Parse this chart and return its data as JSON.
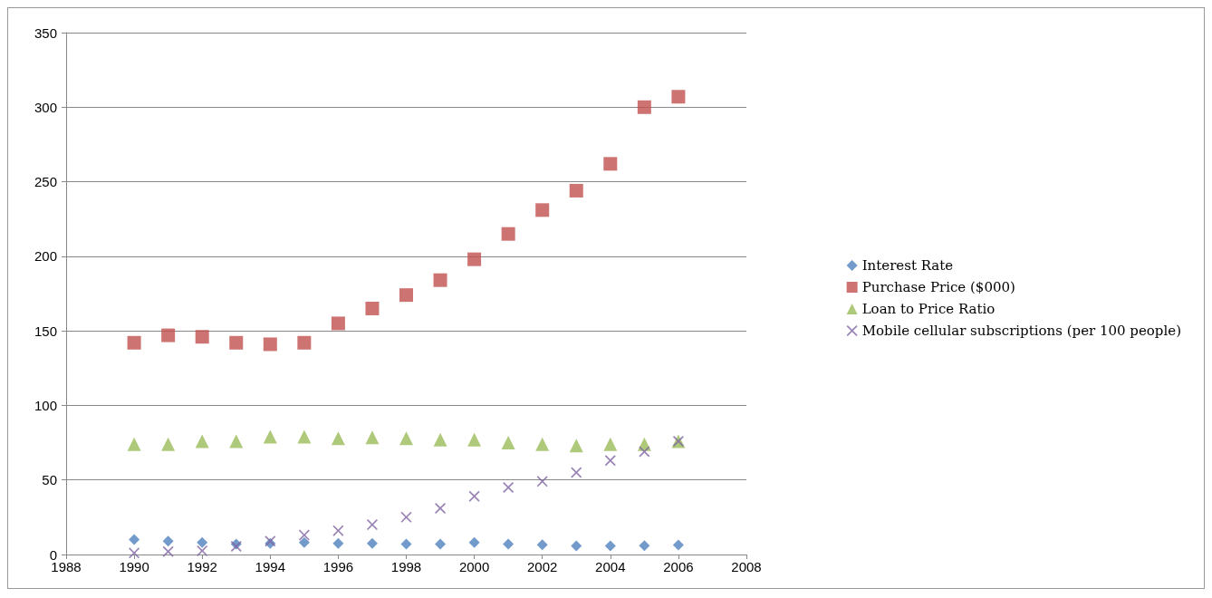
{
  "chart_data": {
    "type": "scatter",
    "xlim": [
      1988,
      2008
    ],
    "xticks": [
      1988,
      1990,
      1992,
      1994,
      1996,
      1998,
      2000,
      2002,
      2004,
      2006,
      2008
    ],
    "ylim": [
      0,
      350
    ],
    "yticks": [
      0,
      50,
      100,
      150,
      200,
      250,
      300,
      350
    ],
    "grid": "y",
    "legend": "right",
    "x": [
      1990,
      1991,
      1992,
      1993,
      1994,
      1995,
      1996,
      1997,
      1998,
      1999,
      2000,
      2001,
      2002,
      2003,
      2004,
      2005,
      2006
    ],
    "series": [
      {
        "name": "Interest Rate",
        "color": "#4f81bd",
        "marker": "diamond",
        "values": [
          10,
          9,
          8,
          7,
          7.5,
          8,
          7.5,
          7.5,
          7,
          7,
          8,
          7,
          6.5,
          5.8,
          5.8,
          5.9,
          6.4
        ]
      },
      {
        "name": "Purchase Price ($000)",
        "color": "#c0504d",
        "marker": "square",
        "values": [
          142,
          147,
          146,
          142,
          141,
          142,
          155,
          165,
          174,
          184,
          198,
          215,
          231,
          244,
          262,
          300,
          307
        ]
      },
      {
        "name": "Loan to Price Ratio",
        "color": "#9bbb59",
        "marker": "triangle",
        "values": [
          74,
          74,
          76,
          76,
          79,
          79,
          78,
          78.5,
          78,
          77,
          77,
          75,
          74,
          73,
          74,
          74,
          76
        ]
      },
      {
        "name": "Mobile cellular subscriptions (per 100 people)",
        "color": "#8064a2",
        "marker": "cross",
        "values": [
          1,
          2,
          2.5,
          5.5,
          9,
          13,
          16,
          20,
          25,
          31,
          39,
          45,
          49,
          55,
          63,
          69,
          76
        ]
      }
    ]
  }
}
